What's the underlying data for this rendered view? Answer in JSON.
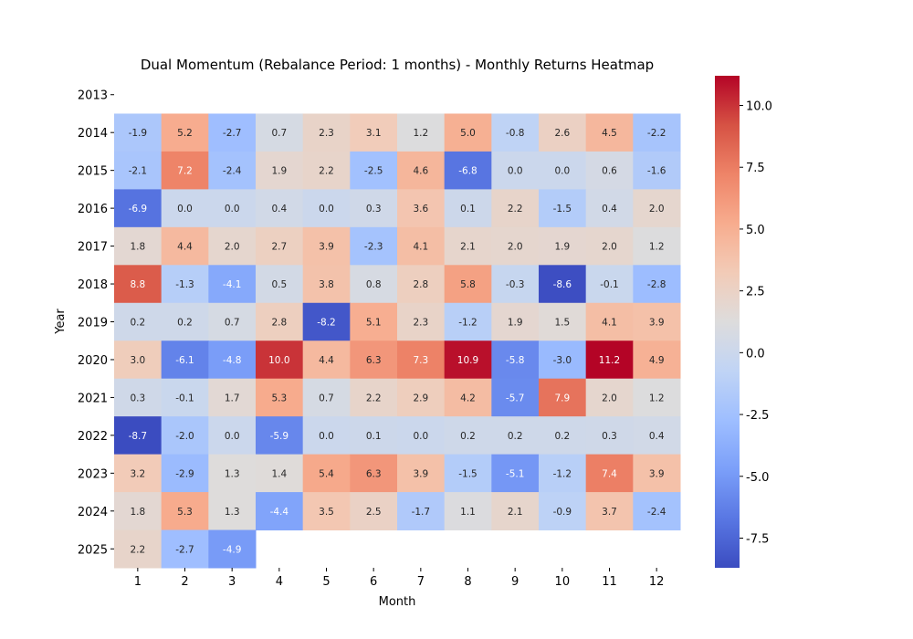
{
  "chart_data": {
    "type": "heatmap",
    "title": "Dual Momentum (Rebalance Period: 1 months) - Monthly Returns Heatmap",
    "xlabel": "Month",
    "ylabel": "Year",
    "colormap": "coolwarm",
    "color_range": [
      -8.7,
      11.2
    ],
    "colorbar_ticks": [
      "-7.5",
      "-5.0",
      "-2.5",
      "0.0",
      "2.5",
      "5.0",
      "7.5",
      "10.0"
    ],
    "colorbar_tick_values": [
      -7.5,
      -5.0,
      -2.5,
      0.0,
      2.5,
      5.0,
      7.5,
      10.0
    ],
    "x_categories": [
      "1",
      "2",
      "3",
      "4",
      "5",
      "6",
      "7",
      "8",
      "9",
      "10",
      "11",
      "12"
    ],
    "y_categories": [
      "2013",
      "2014",
      "2015",
      "2016",
      "2017",
      "2018",
      "2019",
      "2020",
      "2021",
      "2022",
      "2023",
      "2024",
      "2025"
    ],
    "values": [
      [
        null,
        null,
        null,
        null,
        null,
        null,
        null,
        null,
        null,
        null,
        null,
        null
      ],
      [
        -1.9,
        5.2,
        -2.7,
        0.7,
        2.3,
        3.1,
        1.2,
        5.0,
        -0.8,
        2.6,
        4.5,
        -2.2
      ],
      [
        -2.1,
        7.2,
        -2.4,
        1.9,
        2.2,
        -2.5,
        4.6,
        -6.8,
        -0.0,
        -0.0,
        0.6,
        -1.6
      ],
      [
        -6.9,
        0.0,
        0.0,
        0.4,
        0.0,
        0.3,
        3.6,
        0.1,
        2.2,
        -1.5,
        0.4,
        2.0
      ],
      [
        1.8,
        4.4,
        2.0,
        2.7,
        3.9,
        -2.3,
        4.1,
        2.1,
        2.0,
        1.9,
        2.0,
        1.2
      ],
      [
        8.8,
        -1.3,
        -4.1,
        0.5,
        3.8,
        0.8,
        2.8,
        5.8,
        -0.3,
        -8.6,
        -0.1,
        -2.8
      ],
      [
        0.2,
        0.2,
        0.7,
        2.8,
        -8.2,
        5.1,
        2.3,
        -1.2,
        1.9,
        1.5,
        4.1,
        3.9
      ],
      [
        3.0,
        -6.1,
        -4.8,
        10.0,
        4.4,
        6.3,
        7.3,
        10.9,
        -5.8,
        -3.0,
        11.2,
        4.9
      ],
      [
        0.3,
        -0.1,
        1.7,
        5.3,
        0.7,
        2.2,
        2.9,
        4.2,
        -5.7,
        7.9,
        2.0,
        1.2
      ],
      [
        -8.7,
        -2.0,
        0.0,
        -5.9,
        0.0,
        0.1,
        0.0,
        0.2,
        0.2,
        0.2,
        0.3,
        0.4
      ],
      [
        3.2,
        -2.9,
        1.3,
        1.4,
        5.4,
        6.3,
        3.9,
        -1.5,
        -5.1,
        -1.2,
        7.4,
        3.9
      ],
      [
        1.8,
        5.3,
        1.3,
        -4.4,
        3.5,
        2.5,
        -1.7,
        1.1,
        2.1,
        -0.9,
        3.7,
        -2.4
      ],
      [
        2.2,
        -2.7,
        -4.9,
        null,
        null,
        null,
        null,
        null,
        null,
        null,
        null,
        null
      ]
    ]
  }
}
